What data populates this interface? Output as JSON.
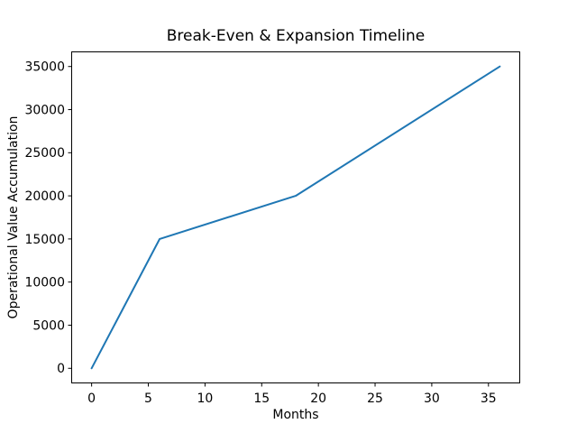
{
  "chart_data": {
    "type": "line",
    "title": "Break-Even & Expansion Timeline",
    "xlabel": "Months",
    "ylabel": "Operational Value Accumulation",
    "x": [
      0,
      6,
      18,
      36
    ],
    "y": [
      0,
      15000,
      20000,
      35000
    ],
    "xticks": [
      0,
      5,
      10,
      15,
      20,
      25,
      30,
      35
    ],
    "yticks": [
      0,
      5000,
      10000,
      15000,
      20000,
      25000,
      30000,
      35000
    ],
    "xlim": [
      -1.8,
      37.8
    ],
    "ylim": [
      -1750,
      36750
    ],
    "line_color": "#1f77b4",
    "spine_color": "#000000",
    "background_color": "#ffffff",
    "grid": false,
    "legend": null
  }
}
